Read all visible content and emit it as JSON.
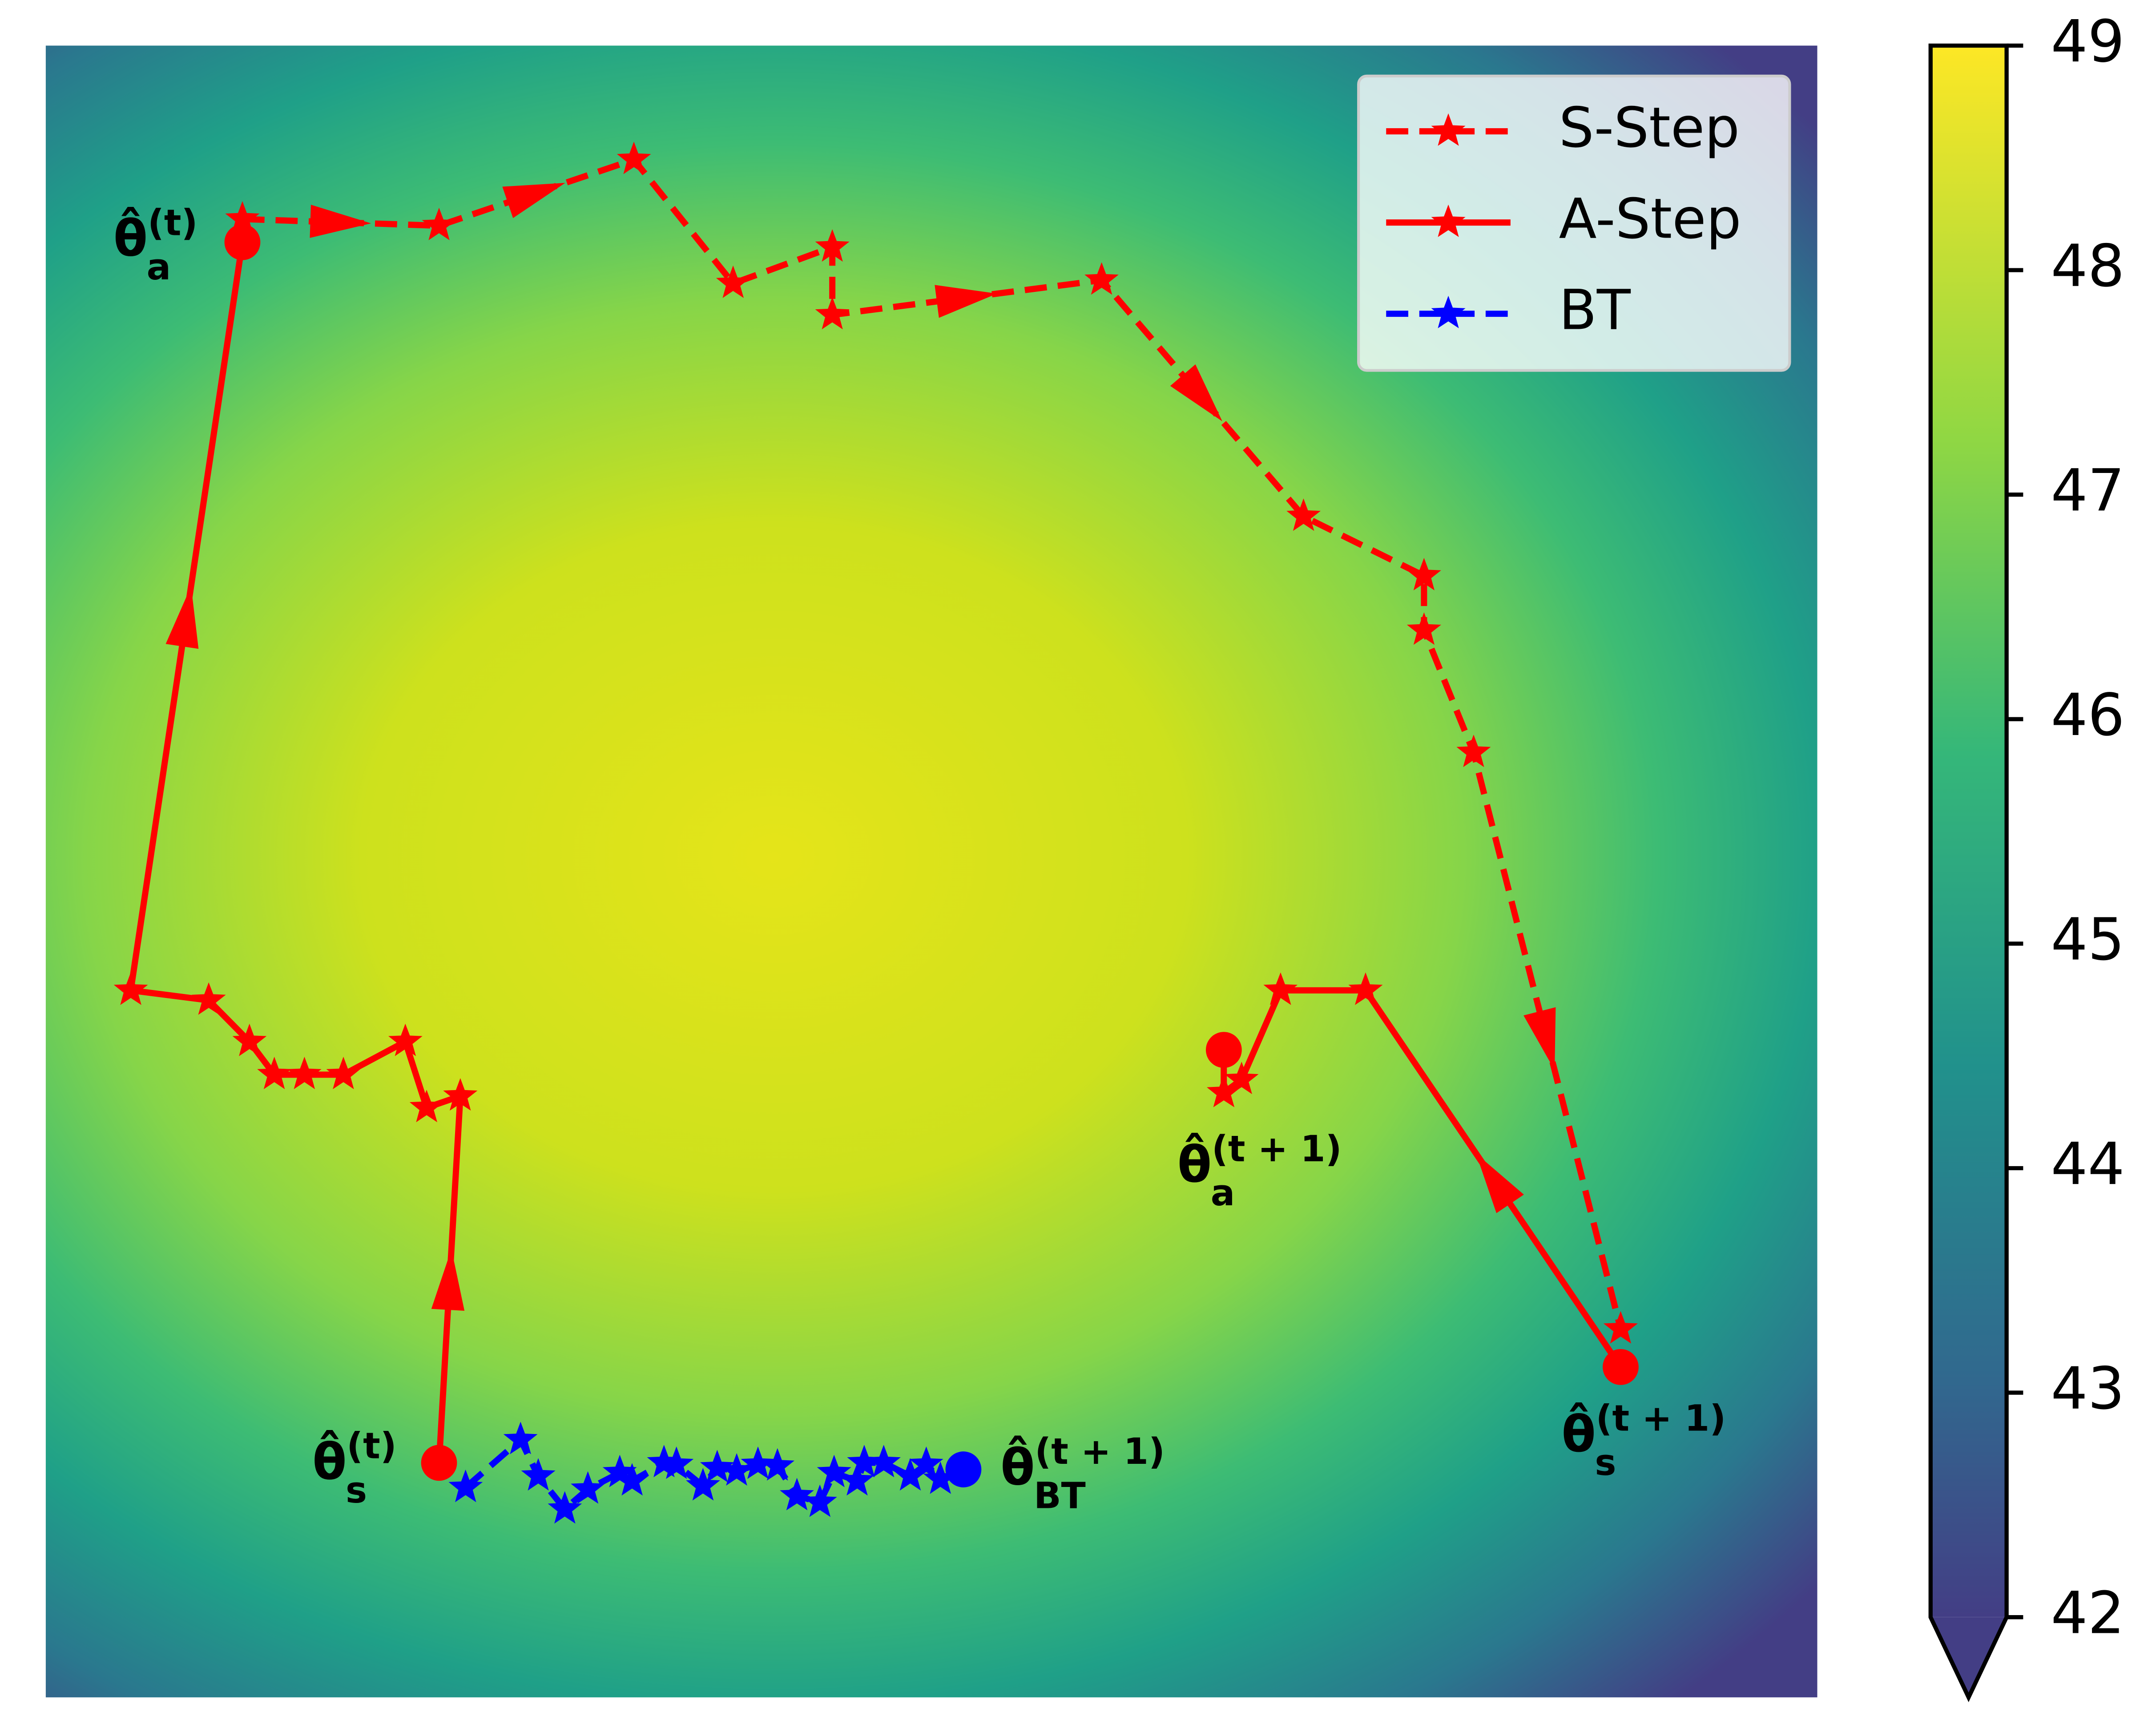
{
  "chart_data": {
    "type": "trajectory",
    "xlim": [
      0,
      100
    ],
    "ylim": [
      0,
      100
    ],
    "series": [
      {
        "name": "S-Step",
        "color": "#ff0000",
        "linestyle": "dashed",
        "circles": "none",
        "x": [
          11.1,
          22.2,
          33.2,
          38.8,
          44.4,
          44.4,
          59.6,
          71.0,
          77.8,
          77.8,
          80.6,
          88.9
        ],
        "values": [
          89.5,
          89.1,
          93.1,
          85.6,
          87.8,
          83.7,
          85.8,
          71.5,
          67.9,
          64.6,
          57.2,
          22.3
        ]
      },
      {
        "name": "A-Step",
        "color": "#ff0000",
        "linestyle": "solid",
        "circles": "ends",
        "x": [
          22.2,
          23.4,
          21.5,
          20.3,
          16.8,
          14.6,
          12.9,
          11.5,
          9.2,
          4.8,
          11.1,
          null,
          88.9,
          74.5,
          69.7,
          67.5,
          66.5,
          66.5
        ],
        "values": [
          14.2,
          36.4,
          35.7,
          39.7,
          37.7,
          37.7,
          37.7,
          39.7,
          42.2,
          42.8,
          88.1,
          null,
          20.0,
          42.8,
          42.8,
          37.4,
          36.6,
          39.2
        ]
      },
      {
        "name": "BT",
        "color": "#0000ff",
        "linestyle": "dashed",
        "circles": "last",
        "x": [
          23.7,
          26.8,
          27.8,
          29.3,
          30.6,
          32.4,
          33.1,
          34.9,
          35.6,
          37.1,
          37.9,
          39.0,
          40.2,
          41.3,
          42.4,
          43.7,
          44.5,
          45.8,
          46.2,
          47.3,
          48.8,
          49.7,
          50.5,
          51.8
        ],
        "values": [
          12.7,
          15.6,
          13.4,
          11.4,
          12.6,
          13.6,
          13.1,
          14.2,
          14.1,
          12.8,
          13.9,
          13.7,
          14.1,
          14.0,
          12.2,
          11.8,
          13.6,
          13.1,
          14.2,
          14.2,
          13.4,
          14.1,
          13.2,
          13.8
        ]
      }
    ],
    "annotations": [
      {
        "base": "θ̂",
        "sub": "a",
        "sup": "(t)"
      },
      {
        "base": "θ̂",
        "sub": "s",
        "sup": "(t)"
      },
      {
        "base": "θ̂",
        "sub": "a",
        "sup": "(t + 1)"
      },
      {
        "base": "θ̂",
        "sub": "s",
        "sup": "(t + 1)"
      },
      {
        "base": "θ̂",
        "sub": "BT",
        "sup": "(t + 1)"
      }
    ],
    "legend": "upper right",
    "colorbar": {
      "lim": [
        42,
        49
      ],
      "ticks": [
        42,
        43,
        44,
        45,
        46,
        47,
        48,
        49
      ],
      "extend": "min",
      "cmap": "viridis"
    }
  }
}
